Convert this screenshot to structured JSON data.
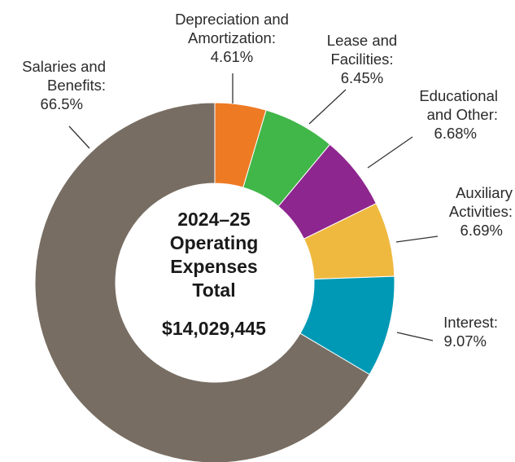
{
  "chart_data": {
    "type": "pie",
    "donut": true,
    "slices": [
      {
        "label_lines": [
          "Salaries and",
          "Benefits:",
          "66.5%"
        ],
        "value": 66.5,
        "color": "#776d62"
      },
      {
        "label_lines": [
          "Depreciation and",
          "Amortization:",
          "4.61%"
        ],
        "value": 4.61,
        "color": "#ee7a24"
      },
      {
        "label_lines": [
          "Lease and",
          "Facilities:",
          "6.45%"
        ],
        "value": 6.45,
        "color": "#41b649"
      },
      {
        "label_lines": [
          "Educational",
          "and Other:",
          "6.68%"
        ],
        "value": 6.68,
        "color": "#8e268f"
      },
      {
        "label_lines": [
          "Auxiliary",
          "Activities:",
          "6.69%"
        ],
        "value": 6.69,
        "color": "#efb940"
      },
      {
        "label_lines": [
          "Interest:",
          "9.07%"
        ],
        "value": 9.07,
        "color": "#0099b5"
      }
    ],
    "center": {
      "title_lines": [
        "2024–25",
        "Operating",
        "Expenses",
        "Total"
      ],
      "amount": "$14,029,445"
    }
  }
}
